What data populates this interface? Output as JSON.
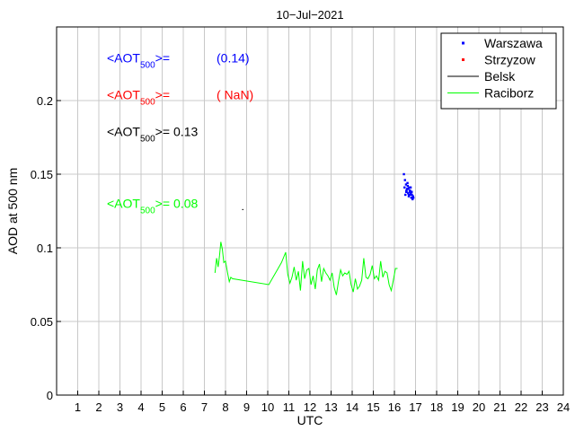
{
  "chart_data": {
    "type": "line",
    "title": "10−Jul−2021",
    "xlabel": "UTC",
    "ylabel": "AOD at 500 nm",
    "xlim": [
      0,
      24
    ],
    "ylim": [
      0,
      0.25
    ],
    "x_ticks": [
      1,
      2,
      3,
      4,
      5,
      6,
      7,
      8,
      9,
      10,
      11,
      12,
      13,
      14,
      15,
      16,
      17,
      18,
      19,
      20,
      21,
      22,
      23,
      24
    ],
    "y_ticks": [
      0,
      0.05,
      0.1,
      0.15,
      0.2
    ],
    "y_tick_labels": [
      "0",
      "0.05",
      "0.1",
      "0.15",
      "0.2"
    ],
    "grid": true,
    "legend_position": "top-right",
    "legend": [
      {
        "label": "Warszawa",
        "marker": "dot",
        "color": "#0000ff"
      },
      {
        "label": "Strzyzow",
        "marker": "dot",
        "color": "#ff0000"
      },
      {
        "label": "Belsk",
        "marker": "line",
        "color": "#000000"
      },
      {
        "label": "Raciborz",
        "marker": "line",
        "color": "#00ff00"
      }
    ],
    "annotations": [
      {
        "prefix": "<AOT",
        "sub": "500",
        "suffix": ">=",
        "value": "(0.14)",
        "color": "#0000ff",
        "y": 0.226
      },
      {
        "prefix": "<AOT",
        "sub": "500",
        "suffix": ">=",
        "value": "( NaN)",
        "color": "#ff0000",
        "y": 0.201
      },
      {
        "prefix": "<AOT",
        "sub": "500",
        "suffix": ">=",
        "value": "0.13",
        "color": "#000000",
        "y": 0.176
      },
      {
        "prefix": "<AOT",
        "sub": "500",
        "suffix": ">=",
        "value": "0.08",
        "color": "#00ff00",
        "y": 0.127
      }
    ],
    "series": [
      {
        "name": "Warszawa",
        "style": "points",
        "color": "#0000ff",
        "x": [
          16.45,
          16.5,
          16.48,
          16.55,
          16.58,
          16.52,
          16.6,
          16.63,
          16.65,
          16.57,
          16.68,
          16.7,
          16.62,
          16.72,
          16.75,
          16.66,
          16.78,
          16.8,
          16.74,
          16.83,
          16.86,
          16.88,
          16.82,
          16.9,
          16.77,
          16.69,
          16.56
        ],
        "y": [
          0.15,
          0.146,
          0.141,
          0.143,
          0.138,
          0.136,
          0.14,
          0.142,
          0.137,
          0.139,
          0.135,
          0.141,
          0.144,
          0.138,
          0.136,
          0.14,
          0.137,
          0.134,
          0.139,
          0.136,
          0.133,
          0.135,
          0.138,
          0.134,
          0.141,
          0.136,
          0.138
        ]
      },
      {
        "name": "Strzyzow",
        "style": "points",
        "color": "#ff0000",
        "x": [],
        "y": []
      },
      {
        "name": "Belsk",
        "style": "line",
        "color": "#000000",
        "x": [
          8.82
        ],
        "y": [
          0.126
        ]
      },
      {
        "name": "Raciborz",
        "style": "line",
        "color": "#00ff00",
        "x": [
          7.5,
          7.58,
          7.65,
          7.72,
          7.78,
          7.85,
          7.92,
          8.0,
          8.1,
          8.18,
          8.25,
          8.33,
          10.05,
          10.25,
          10.45,
          10.65,
          10.85,
          10.95,
          11.05,
          11.15,
          11.25,
          11.35,
          11.45,
          11.55,
          11.65,
          11.75,
          11.85,
          11.95,
          12.05,
          12.15,
          12.25,
          12.35,
          12.45,
          12.55,
          12.65,
          12.75,
          12.85,
          12.95,
          13.05,
          13.15,
          13.25,
          13.35,
          13.45,
          13.55,
          13.65,
          13.75,
          13.85,
          13.95,
          14.05,
          14.15,
          14.25,
          14.35,
          14.45,
          14.55,
          14.65,
          14.75,
          14.85,
          14.95,
          15.05,
          15.15,
          15.25,
          15.35,
          15.45,
          15.55,
          15.65,
          15.75,
          15.85,
          15.95,
          16.05,
          16.15
        ],
        "y": [
          0.083,
          0.093,
          0.087,
          0.095,
          0.104,
          0.099,
          0.09,
          0.091,
          0.083,
          0.077,
          0.08,
          0.079,
          0.075,
          0.08,
          0.085,
          0.09,
          0.097,
          0.082,
          0.076,
          0.08,
          0.087,
          0.078,
          0.084,
          0.071,
          0.091,
          0.079,
          0.085,
          0.086,
          0.075,
          0.081,
          0.072,
          0.085,
          0.089,
          0.077,
          0.086,
          0.083,
          0.081,
          0.078,
          0.083,
          0.073,
          0.068,
          0.077,
          0.085,
          0.081,
          0.083,
          0.082,
          0.084,
          0.075,
          0.07,
          0.079,
          0.072,
          0.074,
          0.078,
          0.093,
          0.08,
          0.079,
          0.082,
          0.088,
          0.079,
          0.081,
          0.078,
          0.091,
          0.08,
          0.084,
          0.083,
          0.075,
          0.071,
          0.078,
          0.086,
          0.086
        ]
      }
    ]
  }
}
